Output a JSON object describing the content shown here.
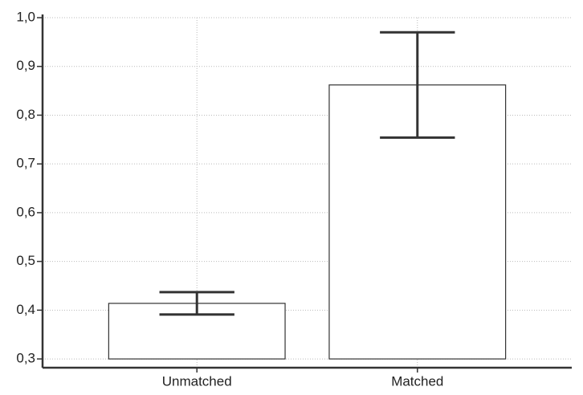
{
  "chart_data": {
    "type": "bar",
    "categories": [
      "Unmatched",
      "Matched"
    ],
    "values": [
      0.414,
      0.862
    ],
    "errors": [
      0.023,
      0.108
    ],
    "color": "#ffffff",
    "edge_color": "#333333",
    "ylim": [
      0.282,
      1.0
    ],
    "yticks": [
      {
        "value": 0.3,
        "label": "0,3"
      },
      {
        "value": 0.4,
        "label": "0,4"
      },
      {
        "value": 0.5,
        "label": "0,5"
      },
      {
        "value": 0.6,
        "label": "0,6"
      },
      {
        "value": 0.7,
        "label": "0,7"
      },
      {
        "value": 0.8,
        "label": "0,8"
      },
      {
        "value": 0.9,
        "label": "0,9"
      },
      {
        "value": 1.0,
        "label": "1,0"
      }
    ],
    "grid": true
  }
}
